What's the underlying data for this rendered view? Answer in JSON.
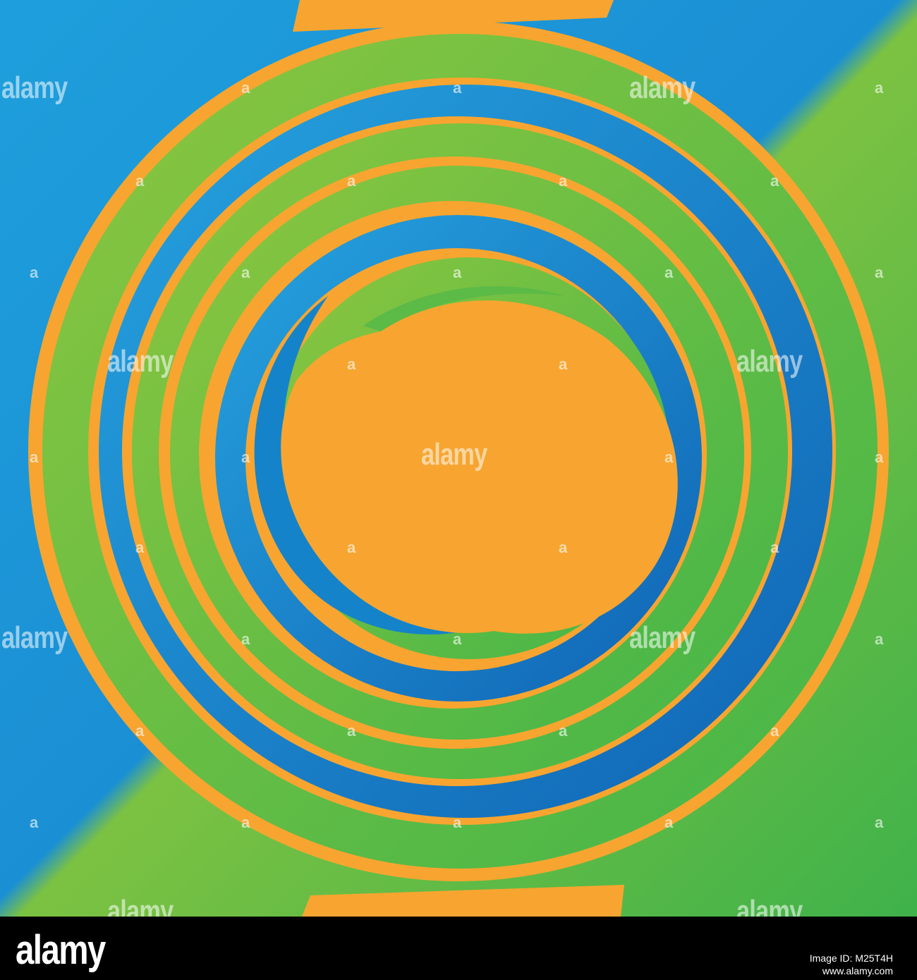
{
  "artwork": {
    "colors": {
      "background_start": "#1e9fdc",
      "background_end": "#3fb24a",
      "orange": "#f7a530",
      "green": "#76c043",
      "blue": "#1583c9"
    }
  },
  "watermark": {
    "text": "alamy",
    "small_mark": "a"
  },
  "footer": {
    "logo": "alamy",
    "image_id": "Image ID: M25T4H",
    "url": "www.alamy.com"
  }
}
